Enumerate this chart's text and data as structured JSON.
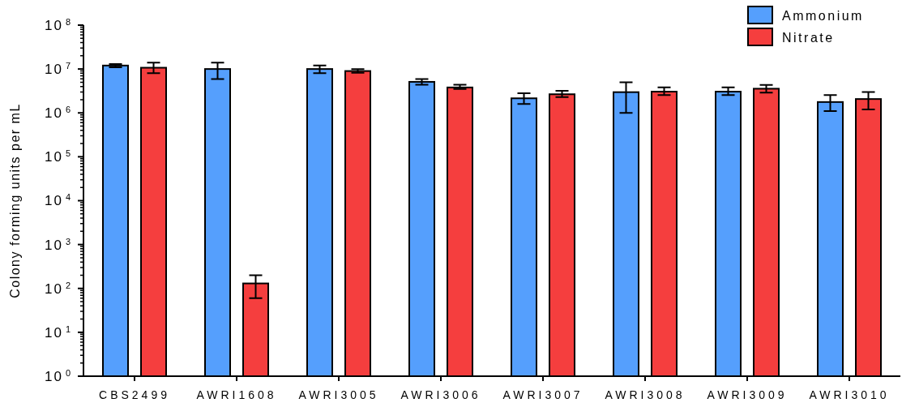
{
  "chart_data": {
    "type": "bar",
    "ylabel": "Colony forming units per mL",
    "categories": [
      "CBS2499",
      "AWRI1608",
      "AWRI3005",
      "AWRI3006",
      "AWRI3007",
      "AWRI3008",
      "AWRI3009",
      "AWRI3010"
    ],
    "series": [
      {
        "name": "Ammonium",
        "color": "#559ffd",
        "values": [
          12000000,
          10000000,
          10000000,
          5100000,
          2150000,
          2970000,
          3050000,
          1770000
        ],
        "errors": [
          [
            11000000,
            13000000
          ],
          [
            5900000,
            14000000
          ],
          [
            8000000,
            12000000
          ],
          [
            4400000,
            5900000
          ],
          [
            1600000,
            2800000
          ],
          [
            1000000,
            5000000
          ],
          [
            2550000,
            3800000
          ],
          [
            1100000,
            2550000
          ]
        ]
      },
      {
        "name": "Nitrate",
        "color": "#f53e3e",
        "values": [
          10700000,
          130,
          9000000,
          3800000,
          2660000,
          3050000,
          3560000,
          2070000
        ],
        "errors": [
          [
            8000000,
            14000000
          ],
          [
            60,
            200
          ],
          [
            8200000,
            10000000
          ],
          [
            3500000,
            4400000
          ],
          [
            2300000,
            3200000
          ],
          [
            2550000,
            3800000
          ],
          [
            2900000,
            4350000
          ],
          [
            1200000,
            3000000
          ]
        ]
      }
    ],
    "log": true,
    "ylim": [
      1,
      100000000
    ],
    "yticks": [
      {
        "value": 1,
        "label": "10$^{0}$"
      },
      {
        "value": 10,
        "label": "10$^{1}$"
      },
      {
        "value": 100,
        "label": "10$^{2}$"
      },
      {
        "value": 1000,
        "label": "10$^{3}$"
      },
      {
        "value": 10000,
        "label": "10$^{4}$"
      },
      {
        "value": 100000,
        "label": "10$^{5}$"
      },
      {
        "value": 1000000,
        "label": "10$^{6}$"
      },
      {
        "value": 10000000,
        "label": "10$^{7}$"
      },
      {
        "value": 100000000,
        "label": "10$^{8}$"
      }
    ],
    "grid": false,
    "legend": "top right"
  }
}
